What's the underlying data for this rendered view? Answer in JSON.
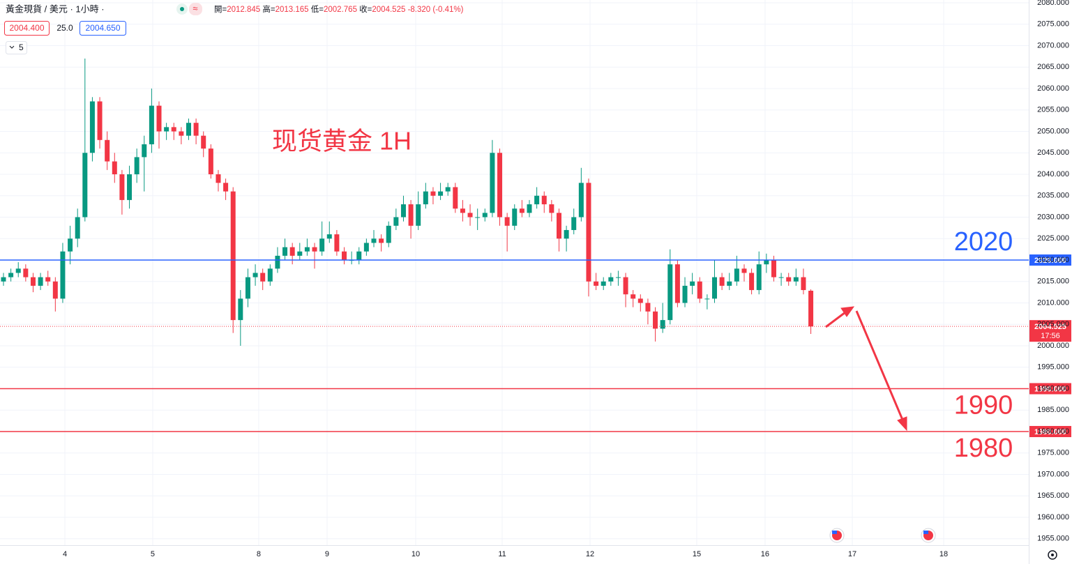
{
  "chart_data": {
    "type": "candlestick",
    "title": "现货黄金 1H",
    "symbol": "黃金現貨 / 美元 · 1小時 ·",
    "ohlc_legend": [
      {
        "label": "開=",
        "value": "2012.845"
      },
      {
        "label": "高=",
        "value": "2013.165"
      },
      {
        "label": "低=",
        "value": "2002.765"
      },
      {
        "label": "收=",
        "value": "2004.525"
      }
    ],
    "change": "-8.320 (-0.41%)",
    "bid": "2004.400",
    "spread": "25.0",
    "ask": "2004.650",
    "indicator_count": "5",
    "up_color": "#089981",
    "down_color": "#f23645",
    "x": [
      0,
      1,
      2,
      3,
      4,
      5,
      6,
      7,
      8,
      9,
      10,
      11,
      12,
      13,
      14,
      15,
      16,
      17,
      18,
      19,
      20,
      21,
      22,
      23,
      24,
      25,
      26,
      27,
      28,
      29,
      30,
      31,
      32,
      33,
      34,
      35,
      36,
      37,
      38,
      39,
      40,
      41,
      42,
      43,
      44,
      45,
      46,
      47,
      48,
      49,
      50,
      51,
      52,
      53,
      54,
      55,
      56,
      57,
      58,
      59,
      60,
      61,
      62,
      63,
      64,
      65,
      66,
      67,
      68,
      69,
      70,
      71,
      72,
      73,
      74,
      75,
      76,
      77,
      78,
      79,
      80,
      81,
      82,
      83,
      84,
      85,
      86,
      87,
      88,
      89,
      90,
      91,
      92,
      93,
      94,
      95,
      96,
      97,
      98,
      99,
      100,
      101,
      102,
      103,
      104,
      105,
      106,
      107,
      108,
      109
    ],
    "open": [
      2015,
      2016,
      2017,
      2018,
      2016,
      2014,
      2016,
      2015,
      2011,
      2022,
      2025,
      2030,
      2045,
      2057,
      2048,
      2043,
      2040,
      2034,
      2040,
      2044,
      2047,
      2056,
      2050,
      2051,
      2050,
      2049,
      2052,
      2049,
      2046,
      2040,
      2038,
      2036,
      2006,
      2011,
      2016,
      2017,
      2015,
      2018,
      2021,
      2023,
      2021,
      2022,
      2023,
      2022,
      2025,
      2026,
      2022,
      2020,
      2020,
      2022,
      2024,
      2025,
      2024,
      2028,
      2030,
      2033,
      2028,
      2033,
      2036,
      2035,
      2036,
      2037,
      2032,
      2031,
      2030,
      2030,
      2031,
      2045,
      2030,
      2028,
      2032,
      2031,
      2033,
      2035,
      2033,
      2031,
      2025,
      2027,
      2030,
      2038,
      2015,
      2014,
      2015,
      2016,
      2016,
      2012,
      2011,
      2010,
      2008,
      2004,
      2006,
      2019,
      2010,
      2014,
      2015,
      2011,
      2011,
      2016,
      2014,
      2015,
      2018,
      2017,
      2013,
      2019,
      2020,
      2016,
      2016,
      2015,
      2016,
      2012.845
    ],
    "high": [
      2017,
      2018,
      2019.5,
      2019,
      2017,
      2017,
      2017.5,
      2016,
      2024,
      2028,
      2032,
      2067,
      2058,
      2058,
      2050,
      2045,
      2041,
      2042,
      2046,
      2049,
      2060,
      2057,
      2052,
      2052,
      2051,
      2053,
      2053,
      2050,
      2047,
      2041,
      2039,
      2037,
      2013,
      2018,
      2019,
      2018,
      2019,
      2023,
      2025,
      2024,
      2024,
      2025,
      2024,
      2029,
      2029,
      2027,
      2023,
      2022,
      2023,
      2025,
      2027,
      2026,
      2029,
      2032,
      2035,
      2034,
      2036,
      2038,
      2037,
      2038,
      2038,
      2038,
      2034,
      2033,
      2032,
      2032,
      2048,
      2046,
      2031,
      2033,
      2034,
      2034,
      2037,
      2036,
      2034,
      2032,
      2028,
      2032,
      2041.5,
      2039,
      2017,
      2016,
      2017,
      2017.5,
      2017,
      2013,
      2012,
      2011,
      2009,
      2010,
      2022.5,
      2020,
      2016,
      2017,
      2016,
      2012,
      2020,
      2017,
      2017,
      2021,
      2019,
      2018,
      2022,
      2021.5,
      2021,
      2017,
      2017,
      2018,
      2018,
      2013.165
    ],
    "low": [
      2014,
      2015,
      2016,
      2015,
      2012.5,
      2013,
      2014,
      2008,
      2010,
      2019,
      2023,
      2029,
      2043,
      2046,
      2041,
      2038,
      2030.6,
      2032,
      2038,
      2036,
      2045,
      2046,
      2048,
      2048,
      2047,
      2048,
      2047,
      2044,
      2039,
      2036,
      2034,
      2003,
      2000,
      2009,
      2014,
      2013,
      2014,
      2017,
      2020,
      2019,
      2020,
      2021,
      2018,
      2021,
      2024,
      2021,
      2019,
      2019,
      2019,
      2021,
      2023,
      2022,
      2023,
      2027,
      2029,
      2025,
      2027,
      2032,
      2033,
      2034,
      2035,
      2031,
      2029,
      2028,
      2027,
      2029,
      2030,
      2028,
      2022,
      2027,
      2030,
      2030,
      2032,
      2031,
      2029,
      2022,
      2022,
      2026,
      2029,
      2011.5,
      2013,
      2013,
      2014,
      2014,
      2009,
      2009,
      2008,
      2005,
      2001,
      2003,
      2005,
      2009,
      2009,
      2012,
      2010,
      2008.5,
      2010,
      2013,
      2013,
      2014,
      2015,
      2012,
      2012,
      2017,
      2015,
      2014,
      2014,
      2014,
      2012,
      2002.765
    ],
    "close": [
      2016,
      2017,
      2018,
      2016,
      2014,
      2016,
      2015,
      2011,
      2022,
      2025,
      2030,
      2045,
      2057,
      2048,
      2043,
      2040,
      2034,
      2040,
      2044,
      2047,
      2056,
      2050,
      2051,
      2050,
      2049,
      2052,
      2049,
      2046,
      2040,
      2038,
      2036,
      2006,
      2011,
      2016,
      2017,
      2015,
      2018,
      2021,
      2023,
      2021,
      2022,
      2023,
      2022,
      2025,
      2026,
      2022,
      2020,
      2020,
      2022,
      2024,
      2025,
      2024,
      2028,
      2030,
      2033,
      2028,
      2033,
      2036,
      2035,
      2036,
      2037,
      2032,
      2031,
      2030,
      2030,
      2031,
      2045,
      2030,
      2028,
      2032,
      2031,
      2033,
      2035,
      2033,
      2031,
      2025,
      2027,
      2030,
      2038,
      2015,
      2014,
      2015,
      2016,
      2016,
      2012,
      2011,
      2010,
      2008,
      2004,
      2006,
      2019,
      2010,
      2014,
      2015,
      2011,
      2011,
      2016,
      2014,
      2015,
      2018,
      2017,
      2013,
      2019,
      2020,
      2016,
      2016,
      2015,
      2016,
      2013,
      2004.525
    ],
    "xlim": [
      -0.47,
      138.42
    ],
    "xticks": [
      {
        "value": 8.29,
        "label": "4"
      },
      {
        "value": 20.15,
        "label": "5"
      },
      {
        "value": 34.46,
        "label": "8"
      },
      {
        "value": 43.69,
        "label": "9"
      },
      {
        "value": 55.65,
        "label": "10"
      },
      {
        "value": 67.33,
        "label": "11"
      },
      {
        "value": 79.19,
        "label": "12"
      },
      {
        "value": 93.6,
        "label": "15"
      },
      {
        "value": 102.82,
        "label": "16"
      },
      {
        "value": 114.6,
        "label": "17"
      },
      {
        "value": 126.93,
        "label": "18"
      }
    ],
    "ylim": [
      1953.5,
      2080.65
    ],
    "yticks": [
      {
        "value": 1955,
        "label": "1955.000"
      },
      {
        "value": 1960,
        "label": "1960.000"
      },
      {
        "value": 1965,
        "label": "1965.000"
      },
      {
        "value": 1970,
        "label": "1970.000"
      },
      {
        "value": 1975,
        "label": "1975.000"
      },
      {
        "value": 1980,
        "label": "1980.000"
      },
      {
        "value": 1985,
        "label": "1985.000"
      },
      {
        "value": 1990,
        "label": "1990.000"
      },
      {
        "value": 1995,
        "label": "1995.000"
      },
      {
        "value": 2000,
        "label": "2000.000"
      },
      {
        "value": 2005,
        "label": "2005.000"
      },
      {
        "value": 2010,
        "label": "2010.000"
      },
      {
        "value": 2015,
        "label": "2015.000"
      },
      {
        "value": 2020,
        "label": "2020.000"
      },
      {
        "value": 2025,
        "label": "2025.000"
      },
      {
        "value": 2030,
        "label": "2030.000"
      },
      {
        "value": 2035,
        "label": "2035.000"
      },
      {
        "value": 2040,
        "label": "2040.000"
      },
      {
        "value": 2045,
        "label": "2045.000"
      },
      {
        "value": 2050,
        "label": "2050.000"
      },
      {
        "value": 2055,
        "label": "2055.000"
      },
      {
        "value": 2060,
        "label": "2060.000"
      },
      {
        "value": 2065,
        "label": "2065.000"
      },
      {
        "value": 2070,
        "label": "2070.000"
      },
      {
        "value": 2075,
        "label": "2075.000"
      },
      {
        "value": 2080,
        "label": "2080.000"
      }
    ],
    "grid": true,
    "last_price": 2004.525,
    "countdown": "17:56",
    "levels": [
      {
        "value": 2020,
        "label": "2020.000",
        "color": "#2962ff"
      },
      {
        "value": 1990,
        "label": "1990.000",
        "color": "#f23645"
      },
      {
        "value": 1980,
        "label": "1980.000",
        "color": "#f23645"
      }
    ]
  }
}
